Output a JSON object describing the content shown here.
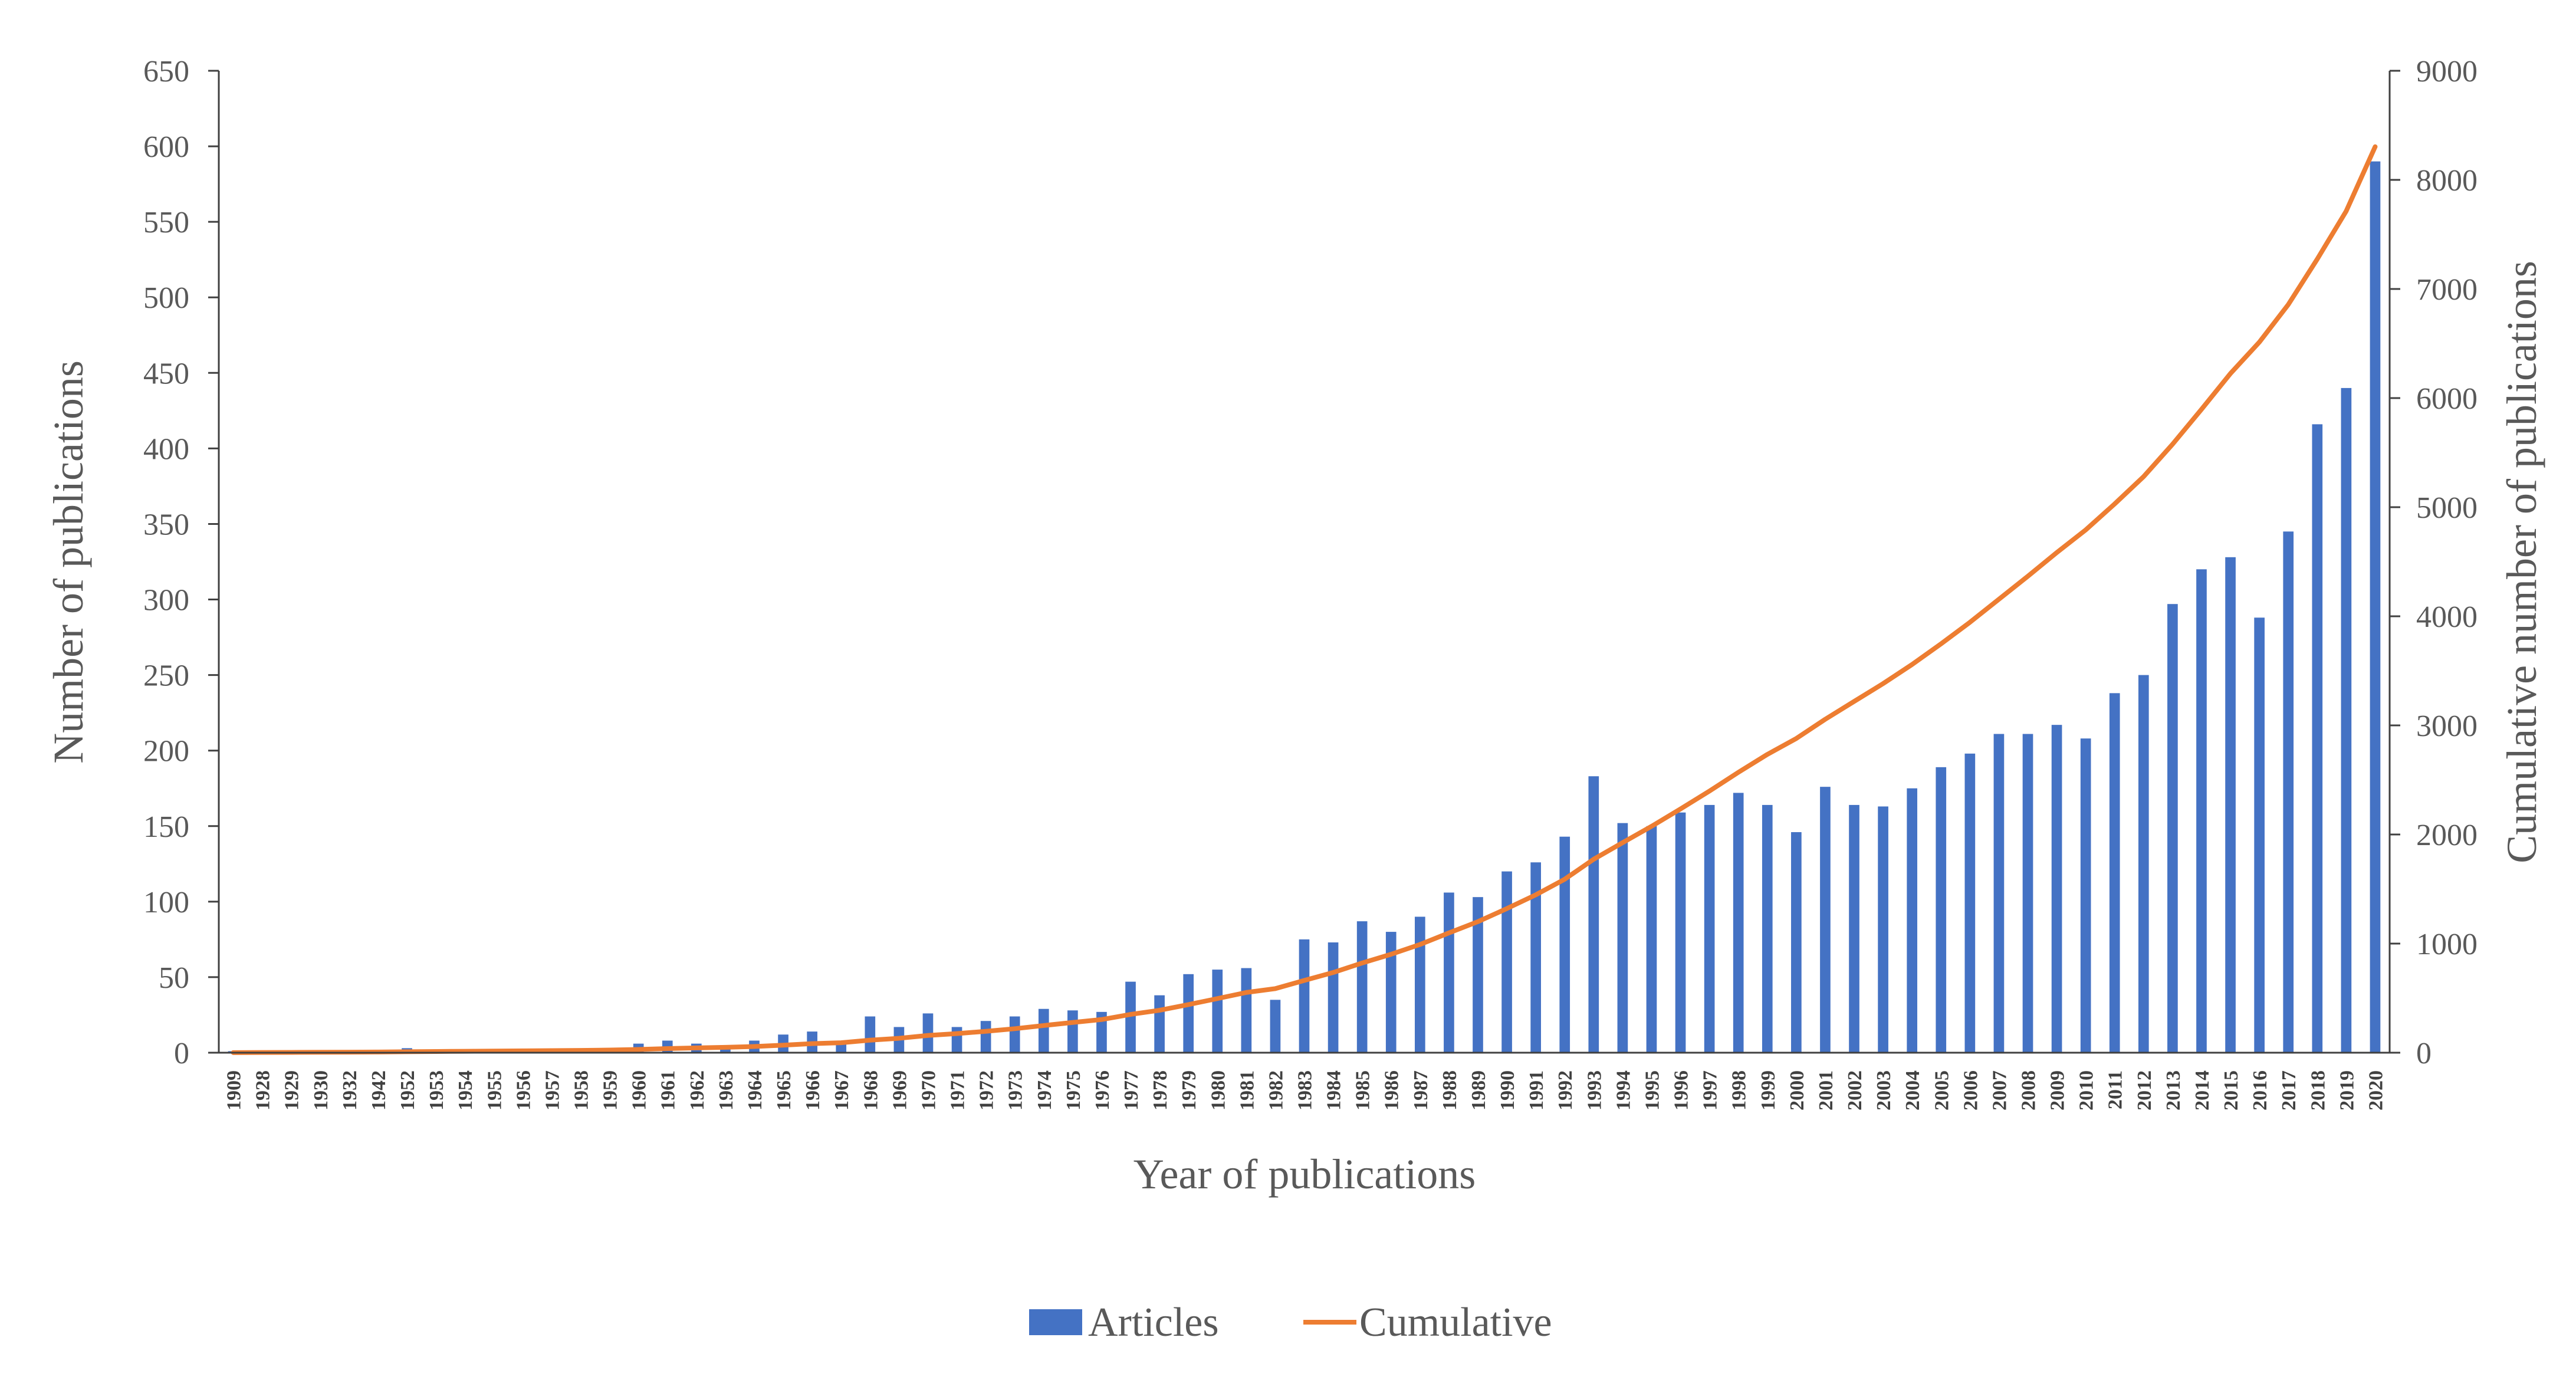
{
  "chart_data": {
    "type": "bar",
    "categories": [
      "1909",
      "1928",
      "1929",
      "1930",
      "1932",
      "1942",
      "1952",
      "1953",
      "1954",
      "1955",
      "1956",
      "1957",
      "1958",
      "1959",
      "1960",
      "1961",
      "1962",
      "1963",
      "1964",
      "1965",
      "1966",
      "1967",
      "1968",
      "1969",
      "1970",
      "1971",
      "1972",
      "1973",
      "1974",
      "1975",
      "1976",
      "1977",
      "1978",
      "1979",
      "1980",
      "1981",
      "1982",
      "1983",
      "1984",
      "1985",
      "1986",
      "1987",
      "1988",
      "1989",
      "1990",
      "1991",
      "1992",
      "1993",
      "1994",
      "1995",
      "1996",
      "1997",
      "1998",
      "1999",
      "2000",
      "2001",
      "2002",
      "2003",
      "2004",
      "2005",
      "2006",
      "2007",
      "2008",
      "2009",
      "2010",
      "2011",
      "2012",
      "2013",
      "2014",
      "2015",
      "2016",
      "2017",
      "2018",
      "2019",
      "2020"
    ],
    "series": [
      {
        "name": "Articles",
        "type": "bar",
        "axis": "left",
        "color": "#4472C4",
        "values": [
          1,
          1,
          1,
          1,
          1,
          1,
          3,
          2,
          2,
          2,
          2,
          2,
          2,
          3,
          6,
          8,
          6,
          5,
          8,
          12,
          14,
          8,
          24,
          17,
          26,
          17,
          21,
          24,
          29,
          28,
          27,
          47,
          38,
          52,
          55,
          56,
          35,
          75,
          73,
          87,
          80,
          90,
          106,
          103,
          120,
          126,
          143,
          183,
          152,
          150,
          159,
          164,
          172,
          164,
          146,
          176,
          164,
          163,
          175,
          189,
          198,
          211,
          211,
          217,
          208,
          238,
          250,
          297,
          320,
          328,
          288,
          345,
          416,
          440,
          590
        ]
      },
      {
        "name": "Cumulative",
        "type": "line",
        "axis": "right",
        "color": "#ED7D31",
        "values": [
          1,
          2,
          3,
          4,
          5,
          6,
          9,
          11,
          13,
          15,
          17,
          19,
          21,
          24,
          30,
          38,
          44,
          49,
          57,
          69,
          83,
          91,
          115,
          132,
          158,
          175,
          196,
          220,
          249,
          277,
          304,
          351,
          389,
          441,
          496,
          552,
          587,
          662,
          735,
          822,
          902,
          992,
          1098,
          1201,
          1321,
          1447,
          1590,
          1773,
          1925,
          2075,
          2234,
          2398,
          2570,
          2734,
          2880,
          3056,
          3220,
          3383,
          3558,
          3747,
          3945,
          4156,
          4367,
          4584,
          4792,
          5030,
          5280,
          5577,
          5897,
          6225,
          6513,
          6858,
          7274,
          7714,
          8304
        ]
      }
    ],
    "xlabel": "Year of publications",
    "ylabel": "Number of publications",
    "y2label": "Cumulative number of publications",
    "ylim": [
      0,
      650
    ],
    "y2lim": [
      0,
      9000
    ],
    "yticks": [
      "0",
      "50",
      "100",
      "150",
      "200",
      "250",
      "300",
      "350",
      "400",
      "450",
      "500",
      "550",
      "600",
      "650"
    ],
    "y2ticks": [
      "0",
      "1000",
      "2000",
      "3000",
      "4000",
      "5000",
      "6000",
      "7000",
      "8000",
      "9000"
    ],
    "grid": false,
    "legend_position": "bottom"
  }
}
